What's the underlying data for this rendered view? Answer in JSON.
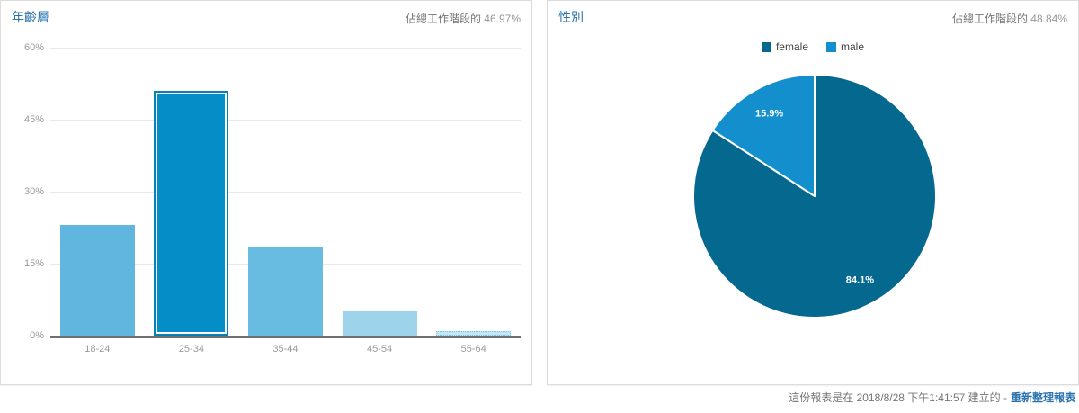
{
  "left_panel": {
    "title": "年齡層",
    "header_stat_label": "佔總工作階段的",
    "header_stat_value": "46.97%"
  },
  "right_panel": {
    "title": "性別",
    "header_stat_label": "佔總工作階段的",
    "header_stat_value": "48.84%"
  },
  "footer": {
    "created_text": "這份報表是在 2018/8/28 下午1:41:57 建立的 -",
    "refresh_link": "重新整理報表"
  },
  "colors": {
    "title_blue": "#2a73ae",
    "axis_gray": "#6f6f6f",
    "tick_gray": "#9a9a9a",
    "grid_gray": "#e8e8e8"
  },
  "chart_data": [
    {
      "type": "bar",
      "title": "年齡層",
      "categories": [
        "18-24",
        "25-34",
        "35-44",
        "45-54",
        "55-64"
      ],
      "values": [
        23,
        51,
        18.5,
        5,
        1
      ],
      "unit": "%",
      "xlabel": "",
      "ylabel": "",
      "ylim": [
        0,
        60
      ],
      "yticks": [
        "0%",
        "15%",
        "30%",
        "45%",
        "60%"
      ],
      "ytick_values": [
        0,
        15,
        30,
        45,
        60
      ],
      "grid": true,
      "bar_colors": [
        "#61b6df",
        "#058dc7",
        "#68bce2",
        "#9dd4ec",
        "#c5e7f5"
      ],
      "highlighted_index": 1,
      "dotted_index": 4
    },
    {
      "type": "pie",
      "title": "性別",
      "legend_position": "top",
      "direction": "clockwise",
      "start_angle_deg": 0,
      "slices": [
        {
          "label": "female",
          "value": 84.1,
          "display": "84.1%",
          "color": "#05688e"
        },
        {
          "label": "male",
          "value": 15.9,
          "display": "15.9%",
          "color": "#148fce"
        }
      ]
    }
  ]
}
